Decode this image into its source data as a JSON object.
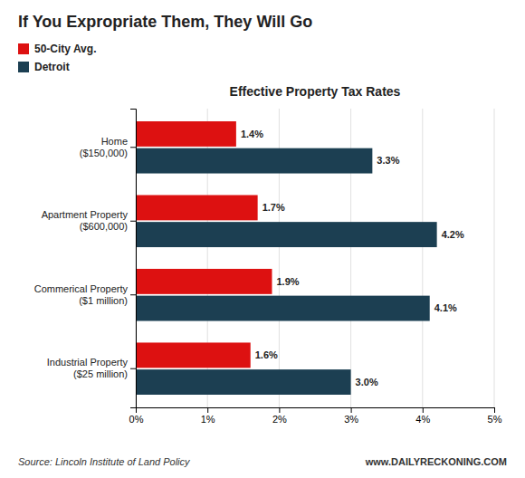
{
  "chart_data": {
    "type": "bar",
    "orientation": "horizontal",
    "title": "If You Expropriate Them, They Will Go",
    "subtitle": "Effective Property Tax Rates",
    "annotations": [
      "Source: Lincoln Institute of Land Policy",
      "www.DAILYRECKONING.COM"
    ],
    "categories": [
      "Home\n($150,000)",
      "Apartment Property\n($600,000)",
      "Commerical Property\n($1 million)",
      "Industrial Property\n($25 million)"
    ],
    "series": [
      {
        "name": "50-City Avg.",
        "color": "#dd1111",
        "values": [
          1.4,
          1.7,
          1.9,
          1.6
        ],
        "value_labels": [
          "1.4%",
          "1.7%",
          "1.9%",
          "1.6%"
        ]
      },
      {
        "name": "Detroit",
        "color": "#1c3f52",
        "values": [
          3.3,
          4.2,
          4.1,
          3.0
        ],
        "value_labels": [
          "3.3%",
          "4.2%",
          "4.1%",
          "3.0%"
        ]
      }
    ],
    "xlim": [
      0,
      5
    ],
    "xticks": [
      {
        "value": 0,
        "label": "0%"
      },
      {
        "value": 1,
        "label": "1%"
      },
      {
        "value": 2,
        "label": "2%"
      },
      {
        "value": 3,
        "label": "3%"
      },
      {
        "value": 4,
        "label": "4%"
      },
      {
        "value": 5,
        "label": "5%"
      }
    ],
    "grid": true,
    "legend": "upper left",
    "data_labels": true
  }
}
